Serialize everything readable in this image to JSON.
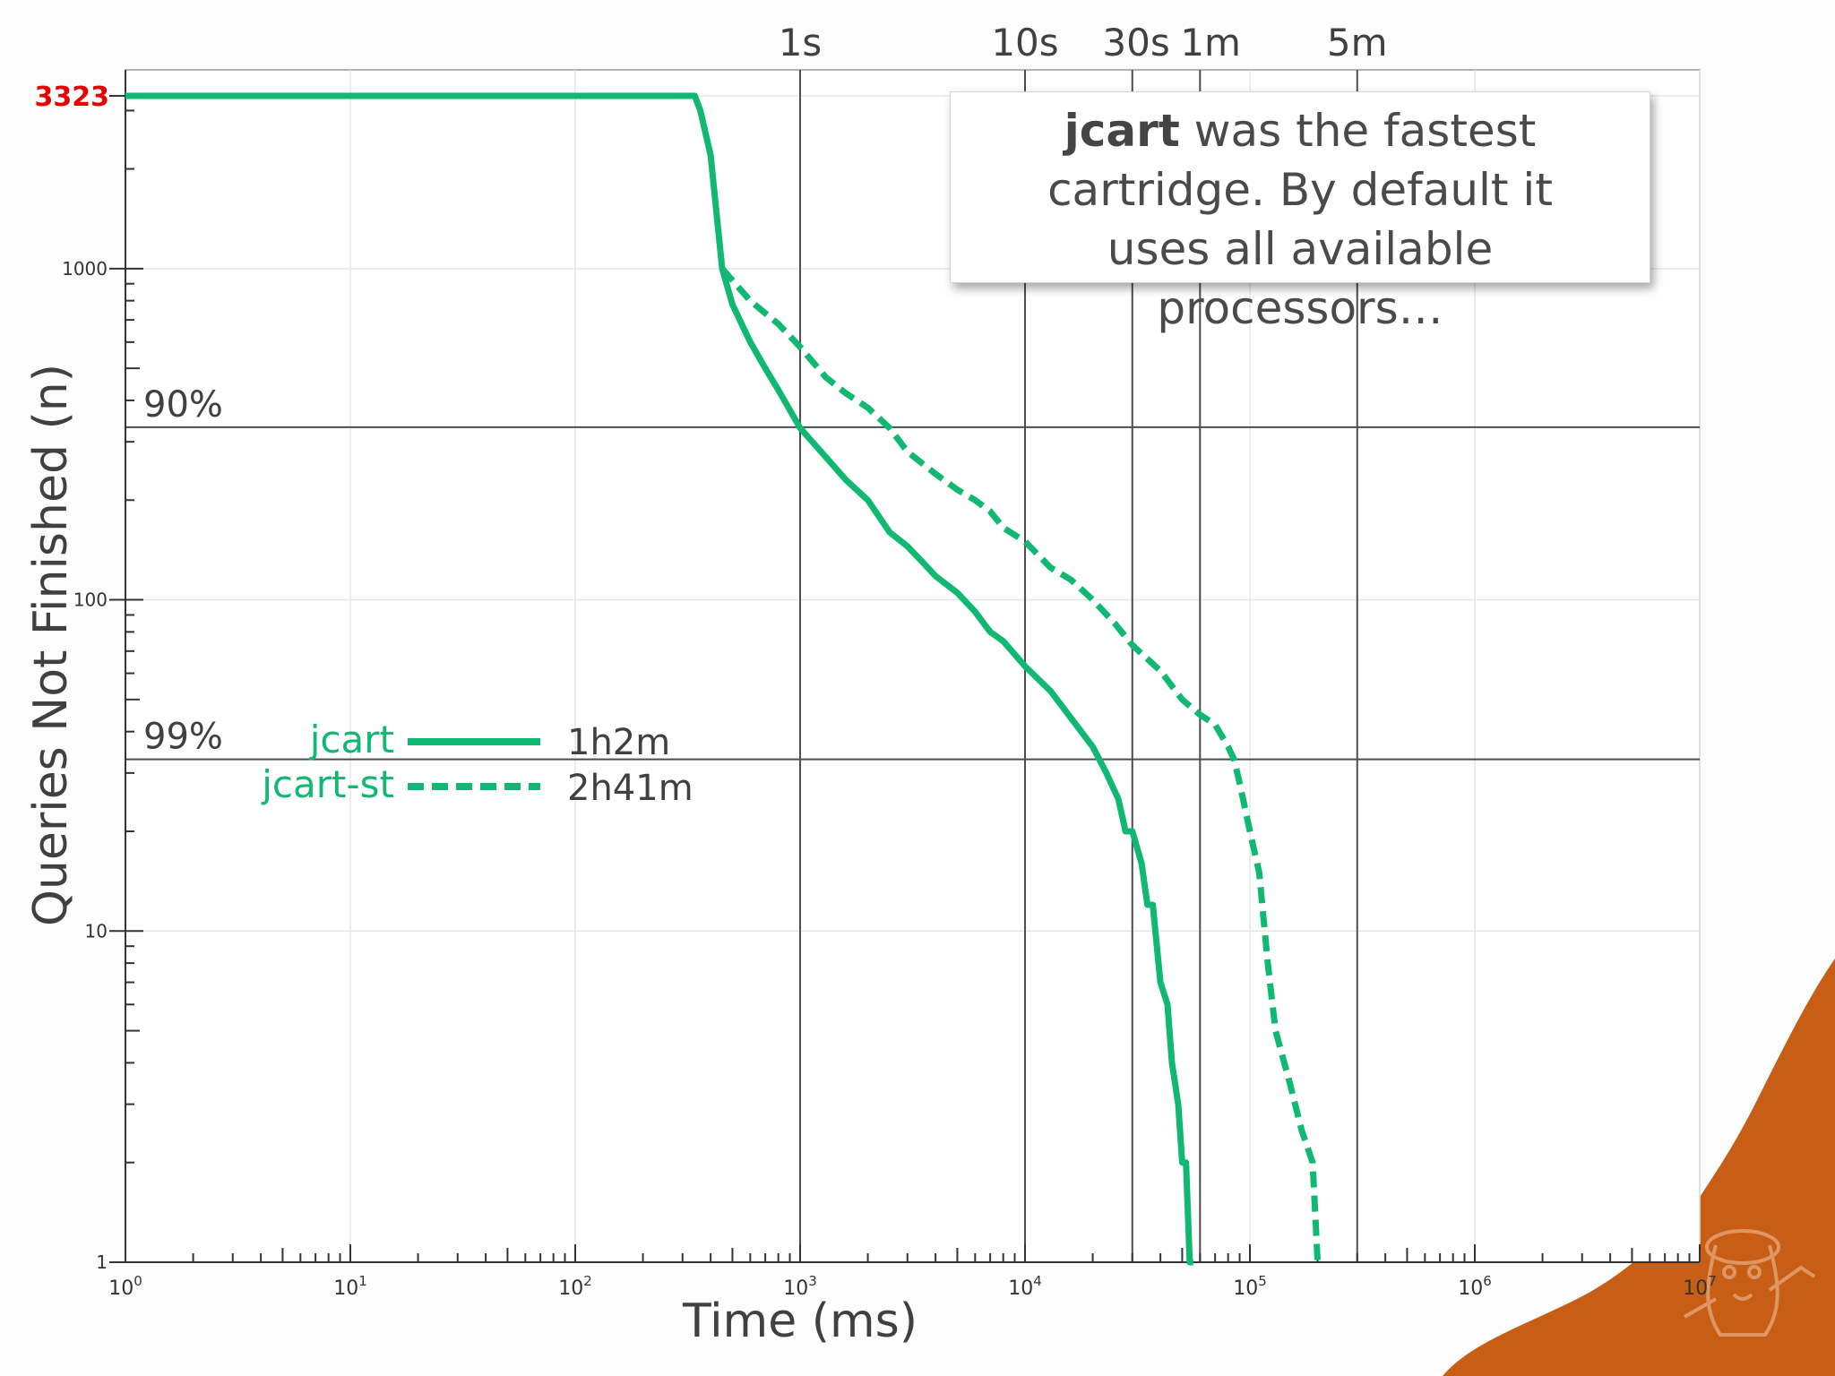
{
  "chart_data": {
    "type": "line",
    "x_scale": "log",
    "y_scale": "log",
    "xlim": [
      1,
      10000000
    ],
    "ylim": [
      1,
      3323
    ],
    "xlabel": "Time (ms)",
    "ylabel": "Queries Not Finished (n)",
    "x_ticks": [
      {
        "base": "10",
        "exp": "0"
      },
      {
        "base": "10",
        "exp": "1"
      },
      {
        "base": "10",
        "exp": "2"
      },
      {
        "base": "10",
        "exp": "3"
      },
      {
        "base": "10",
        "exp": "4"
      },
      {
        "base": "10",
        "exp": "5"
      },
      {
        "base": "10",
        "exp": "6"
      },
      {
        "base": "10",
        "exp": "7"
      }
    ],
    "y_ticks": [
      {
        "value": 1,
        "label": "1"
      },
      {
        "value": 10,
        "label": "10"
      },
      {
        "value": 100,
        "label": "100"
      },
      {
        "value": 1000,
        "label": "1000"
      }
    ],
    "y_top_label": "3323",
    "time_markers": [
      {
        "label": "1s",
        "x": 1000
      },
      {
        "label": "10s",
        "x": 10000
      },
      {
        "label": "30s",
        "x": 30000
      },
      {
        "label": "1m",
        "x": 60000
      },
      {
        "label": "5m",
        "x": 300000
      }
    ],
    "percent_lines": [
      {
        "label": "90%",
        "y": 332
      },
      {
        "label": "99%",
        "y": 33
      }
    ],
    "series": [
      {
        "name": "jcart",
        "style": "solid",
        "total_time": "1h2m",
        "x": [
          1,
          340,
          360,
          400,
          450,
          500,
          600,
          700,
          800,
          1000,
          1300,
          1600,
          2000,
          2500,
          3000,
          3500,
          4000,
          5000,
          6000,
          7000,
          8000,
          10000,
          13000,
          16000,
          20000,
          23000,
          26000,
          28000,
          30000,
          33000,
          35000,
          37000,
          40000,
          43000,
          45000,
          48000,
          50000,
          52000,
          54000,
          56000
        ],
        "y": [
          3323,
          3323,
          3000,
          2200,
          1000,
          780,
          600,
          500,
          430,
          330,
          270,
          230,
          200,
          160,
          145,
          130,
          118,
          105,
          92,
          80,
          75,
          63,
          53,
          44,
          36,
          30,
          25,
          20,
          20,
          16,
          12,
          12,
          7,
          6,
          4,
          3,
          2,
          2,
          1,
          1
        ]
      },
      {
        "name": "jcart-st",
        "style": "dashed",
        "total_time": "2h41m",
        "x": [
          450,
          600,
          800,
          1000,
          1300,
          1600,
          2000,
          2500,
          3000,
          4000,
          5000,
          6000,
          7000,
          8000,
          10000,
          13000,
          16000,
          20000,
          25000,
          30000,
          40000,
          50000,
          60000,
          70000,
          80000,
          85000,
          90000,
          100000,
          110000,
          120000,
          130000,
          150000,
          170000,
          190000,
          200000,
          210000
        ],
        "y": [
          1000,
          800,
          680,
          580,
          470,
          420,
          380,
          330,
          280,
          240,
          215,
          200,
          185,
          165,
          150,
          125,
          115,
          100,
          85,
          73,
          61,
          50,
          45,
          42,
          36,
          33,
          28,
          20,
          15,
          8,
          5,
          3.5,
          2.5,
          2,
          1,
          1
        ]
      }
    ]
  },
  "colors": {
    "series": "#10b872",
    "marker_line": "#4d4d4d",
    "top_label": "#e60000",
    "text": "#404040",
    "mascot_bg": "#c85e16"
  },
  "callout": {
    "bold": "jcart",
    "line1_rest": " was the fastest",
    "line2": "cartridge. By default it",
    "line3": "uses all available processors…"
  },
  "mascot": {
    "icon": "cartoon-mascot-icon"
  }
}
